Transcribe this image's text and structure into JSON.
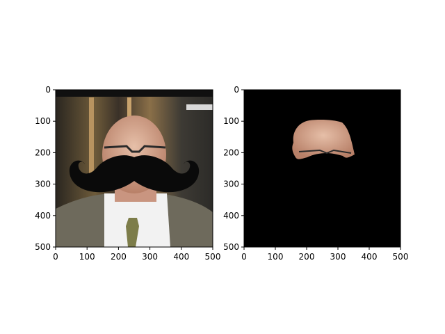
{
  "chart_data": [
    {
      "type": "image",
      "content": "photo of an elderly man in a grey suit with a large black cartoon mustache overlaid",
      "xlim": [
        0,
        500
      ],
      "ylim": [
        500,
        0
      ],
      "xticks": [
        0,
        100,
        200,
        300,
        400,
        500
      ],
      "yticks": [
        0,
        100,
        200,
        300,
        400,
        500
      ],
      "title": "",
      "xlabel": "",
      "ylabel": ""
    },
    {
      "type": "image",
      "content": "mask showing only the upper forehead/head region of the face on a black background",
      "xlim": [
        0,
        500
      ],
      "ylim": [
        500,
        0
      ],
      "xticks": [
        0,
        100,
        200,
        300,
        400,
        500
      ],
      "yticks": [
        0,
        100,
        200,
        300,
        400,
        500
      ],
      "title": "",
      "xlabel": "",
      "ylabel": ""
    }
  ],
  "colors": {
    "mustache": "#0a0a0a",
    "background_mask": "#000000",
    "skin": "#d9a58a",
    "suit": "#6e6a5c",
    "axes": "#000000"
  }
}
